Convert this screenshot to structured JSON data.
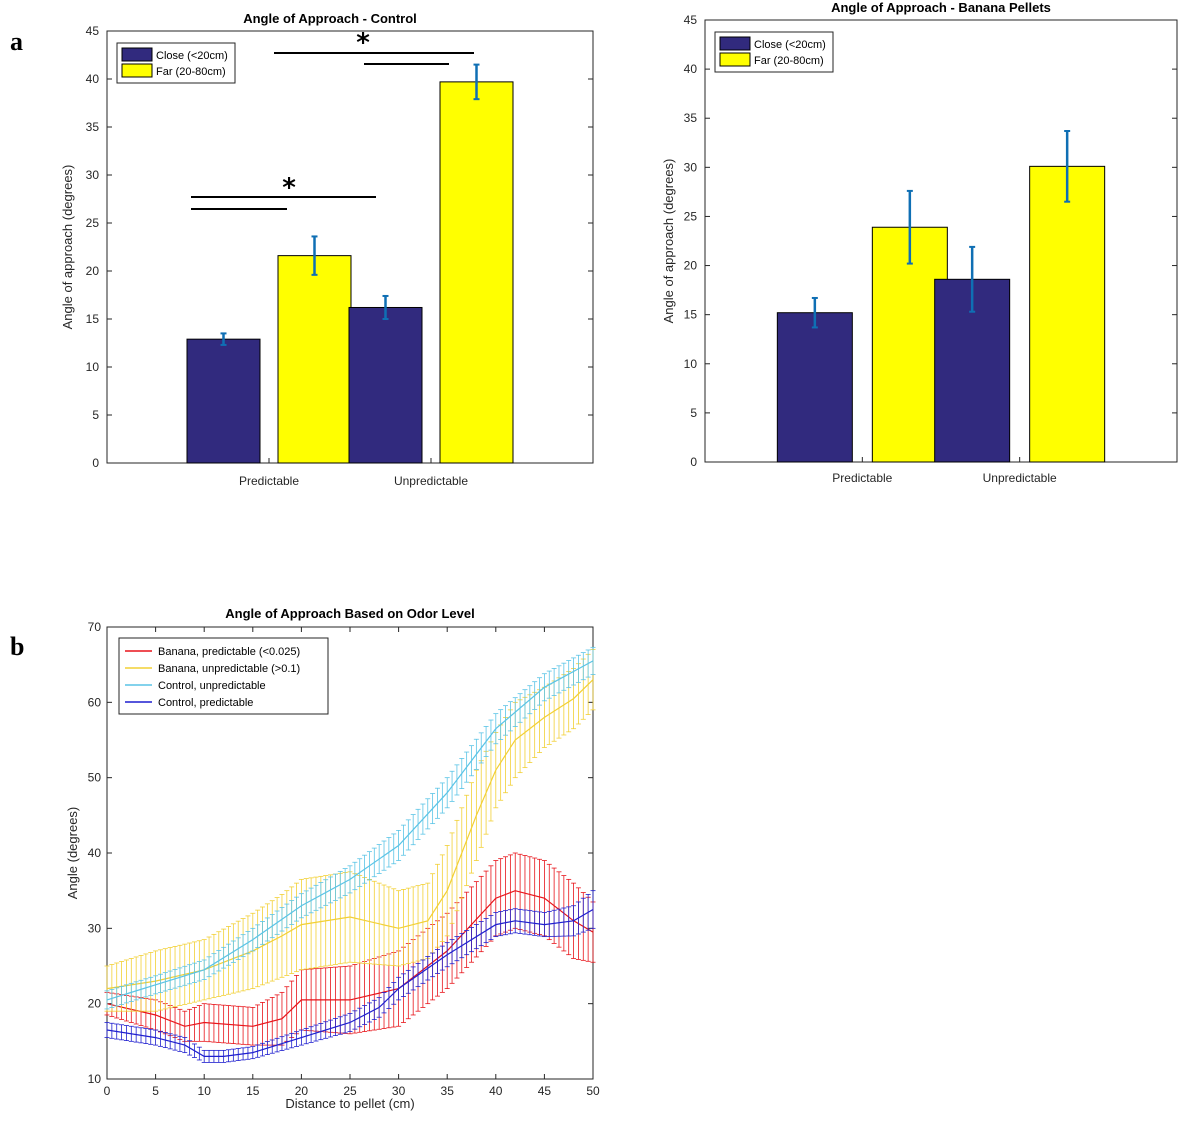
{
  "panel_labels": {
    "a": "a",
    "b": "b"
  },
  "significance_marker": "*",
  "chart_data": [
    {
      "type": "bar",
      "title": "Angle of Approach - Control",
      "ylabel": "Angle of approach (degrees)",
      "xlabel": "",
      "categories": [
        "Predictable",
        "Unpredictable"
      ],
      "ylim": [
        0,
        45
      ],
      "yticks": [
        0,
        5,
        10,
        15,
        20,
        25,
        30,
        35,
        40,
        45
      ],
      "legend_placement": "top-left",
      "series": [
        {
          "name": "Close (<20cm)",
          "color": "#312a7e",
          "values": [
            12.9,
            16.2
          ],
          "errors": [
            0.6,
            1.2
          ]
        },
        {
          "name": "Far (20-80cm)",
          "color": "#ffff00",
          "values": [
            21.6,
            39.7
          ],
          "errors": [
            2.0,
            1.8
          ]
        }
      ],
      "error_bar_color": "#0f6fb4"
    },
    {
      "type": "bar",
      "title": "Angle of Approach - Banana Pellets",
      "ylabel": "Angle of approach (degrees)",
      "xlabel": "",
      "categories": [
        "Predictable",
        "Unpredictable"
      ],
      "ylim": [
        0,
        45
      ],
      "yticks": [
        0,
        5,
        10,
        15,
        20,
        25,
        30,
        35,
        40,
        45
      ],
      "legend_placement": "top-left",
      "series": [
        {
          "name": "Close (<20cm)",
          "color": "#312a7e",
          "values": [
            15.2,
            18.6
          ],
          "errors": [
            1.5,
            3.3
          ]
        },
        {
          "name": "Far (20-80cm)",
          "color": "#ffff00",
          "values": [
            23.9,
            30.1
          ],
          "errors": [
            3.7,
            3.6
          ]
        }
      ],
      "error_bar_color": "#0f6fb4"
    },
    {
      "type": "line",
      "title": "Angle of Approach Based on Odor Level",
      "xlabel": "Distance to pellet (cm)",
      "ylabel": "Angle (degrees)",
      "xlim": [
        0,
        50
      ],
      "ylim": [
        10,
        70
      ],
      "xticks": [
        0,
        5,
        10,
        15,
        20,
        25,
        30,
        35,
        40,
        45,
        50
      ],
      "yticks": [
        10,
        20,
        30,
        40,
        50,
        60,
        70
      ],
      "legend_placement": "top-left",
      "series": [
        {
          "name": "Banana, predictable (<0.025)",
          "color": "#e8141a",
          "x": [
            0,
            5,
            8,
            10,
            15,
            18,
            20,
            25,
            30,
            35,
            40,
            42,
            45,
            48,
            50
          ],
          "y": [
            20,
            18.5,
            17,
            17.5,
            17,
            18,
            20.5,
            20.5,
            22,
            27,
            34,
            35,
            34,
            31,
            29.5
          ],
          "err": [
            1.5,
            2,
            2,
            2.5,
            2.5,
            3.5,
            4,
            4.5,
            5,
            5,
            5,
            5,
            5,
            5,
            4
          ]
        },
        {
          "name": "Banana, unpredictable (>0.1)",
          "color": "#f2d035",
          "x": [
            0,
            5,
            10,
            15,
            18,
            20,
            25,
            30,
            33,
            35,
            38,
            40,
            42,
            45,
            48,
            50
          ],
          "y": [
            22,
            23,
            24.5,
            27,
            29,
            30.5,
            31.5,
            30,
            31,
            35,
            45,
            51,
            55,
            58,
            60.5,
            63
          ],
          "err": [
            3,
            4,
            4,
            5,
            5.5,
            6,
            6,
            5,
            5,
            6,
            6,
            5,
            5,
            4,
            4,
            4
          ]
        },
        {
          "name": "Control, unpredictable",
          "color": "#5ac4e6",
          "x": [
            0,
            5,
            10,
            15,
            20,
            25,
            30,
            35,
            40,
            45,
            50
          ],
          "y": [
            20.5,
            22.5,
            24.5,
            28.5,
            33,
            36.5,
            41,
            48,
            56.5,
            62,
            65.5
          ],
          "err": [
            1.2,
            1.2,
            1.3,
            1.5,
            1.6,
            1.8,
            2,
            2,
            2,
            1.8,
            1.8
          ]
        },
        {
          "name": "Control, predictable",
          "color": "#1f1fcf",
          "x": [
            0,
            5,
            8,
            10,
            12,
            15,
            20,
            25,
            28,
            30,
            35,
            40,
            42,
            45,
            48,
            50
          ],
          "y": [
            16.5,
            15.5,
            14.5,
            13,
            13,
            13.5,
            15.5,
            17.5,
            19.5,
            22,
            26.5,
            30.5,
            31,
            30.5,
            31,
            32.5
          ],
          "err": [
            1,
            1,
            1,
            0.8,
            0.8,
            0.8,
            1,
            1.2,
            1.3,
            1.5,
            1.6,
            1.6,
            1.6,
            1.6,
            2,
            2.5
          ]
        }
      ]
    }
  ]
}
